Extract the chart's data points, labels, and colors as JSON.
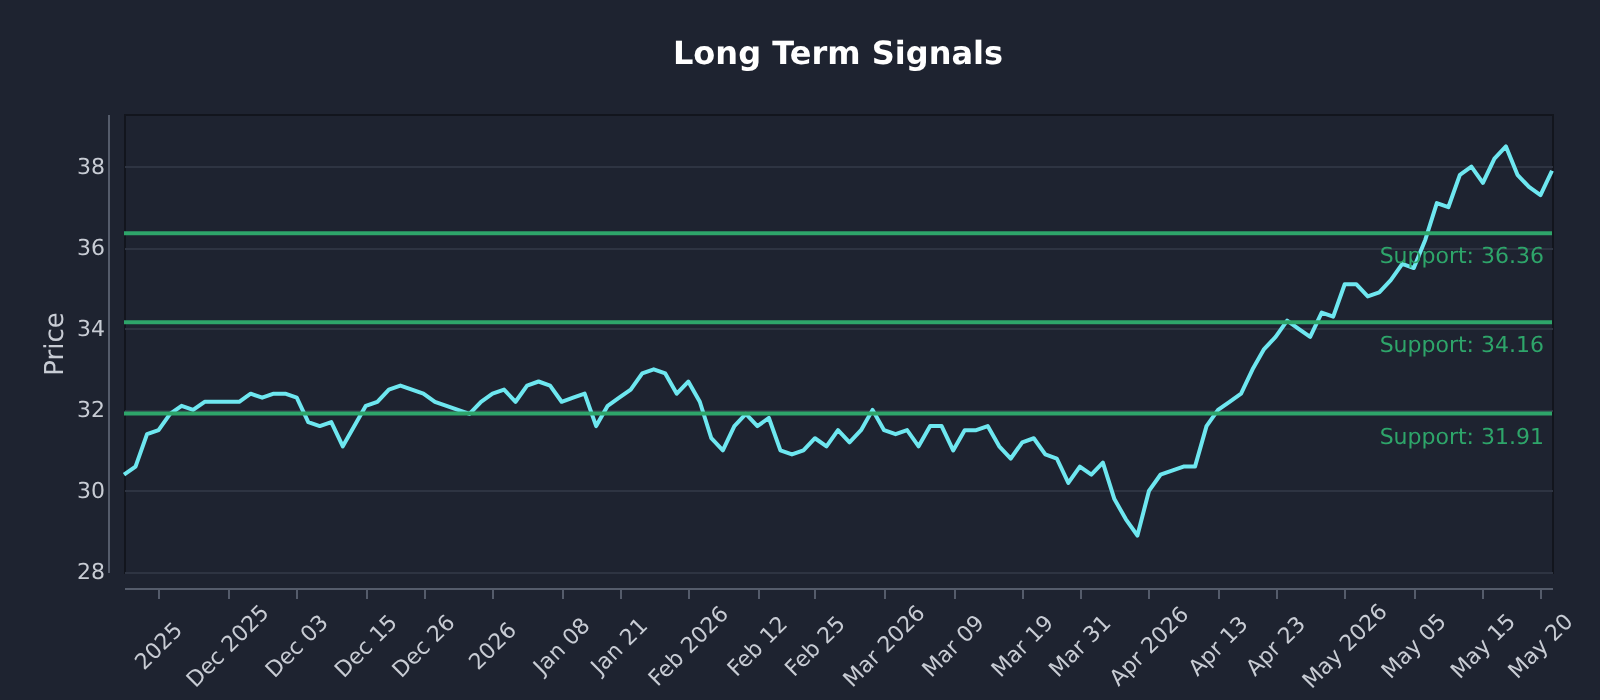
{
  "chart_data": {
    "type": "line",
    "title": "Long Term Signals",
    "ylabel": "Price",
    "categories": [
      null,
      null,
      null,
      "2025",
      null,
      null,
      null,
      null,
      null,
      "Dec 2025",
      null,
      null,
      null,
      null,
      null,
      "Dec 03",
      null,
      null,
      null,
      null,
      null,
      "Dec 15",
      null,
      null,
      null,
      null,
      "Dec 26",
      null,
      null,
      null,
      null,
      null,
      "2026",
      null,
      null,
      null,
      null,
      null,
      "Jan 08",
      null,
      null,
      null,
      null,
      "Jan 21",
      null,
      null,
      null,
      null,
      null,
      "Feb 2026",
      null,
      null,
      null,
      null,
      null,
      "Feb 12",
      null,
      null,
      null,
      null,
      "Feb 25",
      null,
      null,
      null,
      null,
      null,
      "Mar 2026",
      null,
      null,
      null,
      null,
      null,
      "Mar 09",
      null,
      null,
      null,
      null,
      null,
      "Mar 19",
      null,
      null,
      null,
      null,
      "Mar 31",
      null,
      null,
      null,
      null,
      null,
      "Apr 2026",
      null,
      null,
      null,
      null,
      null,
      "Apr 13",
      null,
      null,
      null,
      null,
      "Apr 23",
      null,
      null,
      null,
      null,
      null,
      "May 2026",
      null,
      null,
      null,
      null,
      null,
      "May 05",
      null,
      null,
      null,
      null,
      null,
      "May 15",
      null,
      null,
      null,
      null,
      "May 20",
      null
    ],
    "series": [
      {
        "color": "#6ee7f0",
        "values": [
          30.4,
          30.6,
          31.4,
          31.5,
          31.9,
          32.1,
          32.0,
          32.2,
          32.2,
          32.2,
          32.2,
          32.4,
          32.3,
          32.4,
          32.4,
          32.3,
          31.7,
          31.6,
          31.7,
          31.1,
          31.6,
          32.1,
          32.2,
          32.5,
          32.6,
          32.5,
          32.4,
          32.2,
          32.1,
          32.0,
          31.9,
          32.2,
          32.4,
          32.5,
          32.2,
          32.6,
          32.7,
          32.6,
          32.2,
          32.3,
          32.4,
          31.6,
          32.1,
          32.3,
          32.5,
          32.9,
          33.0,
          32.9,
          32.4,
          32.7,
          32.2,
          31.3,
          31.0,
          31.6,
          31.9,
          31.6,
          31.8,
          31.0,
          30.9,
          31.0,
          31.3,
          31.1,
          31.5,
          31.2,
          31.5,
          32.0,
          31.5,
          31.4,
          31.5,
          31.1,
          31.6,
          31.6,
          31.0,
          31.5,
          31.5,
          31.6,
          31.1,
          30.8,
          31.2,
          31.3,
          30.9,
          30.8,
          30.2,
          30.6,
          30.4,
          30.7,
          29.8,
          29.3,
          28.9,
          30.0,
          30.4,
          30.5,
          30.6,
          30.6,
          31.6,
          32.0,
          32.2,
          32.4,
          33.0,
          33.5,
          33.8,
          34.2,
          34.0,
          33.8,
          34.4,
          34.3,
          35.1,
          35.1,
          34.8,
          34.9,
          35.2,
          35.6,
          35.5,
          36.2,
          37.1,
          37.0,
          37.8,
          38.0,
          37.6,
          38.2,
          38.5,
          37.8,
          37.5,
          37.3,
          37.9
        ]
      }
    ],
    "ylim": [
      28,
      39.3
    ],
    "yticks": [
      28,
      30,
      32,
      34,
      36,
      38
    ],
    "grid": "y",
    "ref_lines": [
      {
        "axis": "y",
        "value": 36.36,
        "label": "Support: 36.36",
        "color": "#2ea56a"
      },
      {
        "axis": "y",
        "value": 34.16,
        "label": "Support: 34.16",
        "color": "#2ea56a"
      },
      {
        "axis": "y",
        "value": 31.91,
        "label": "Support: 31.91",
        "color": "#2ea56a"
      }
    ]
  }
}
